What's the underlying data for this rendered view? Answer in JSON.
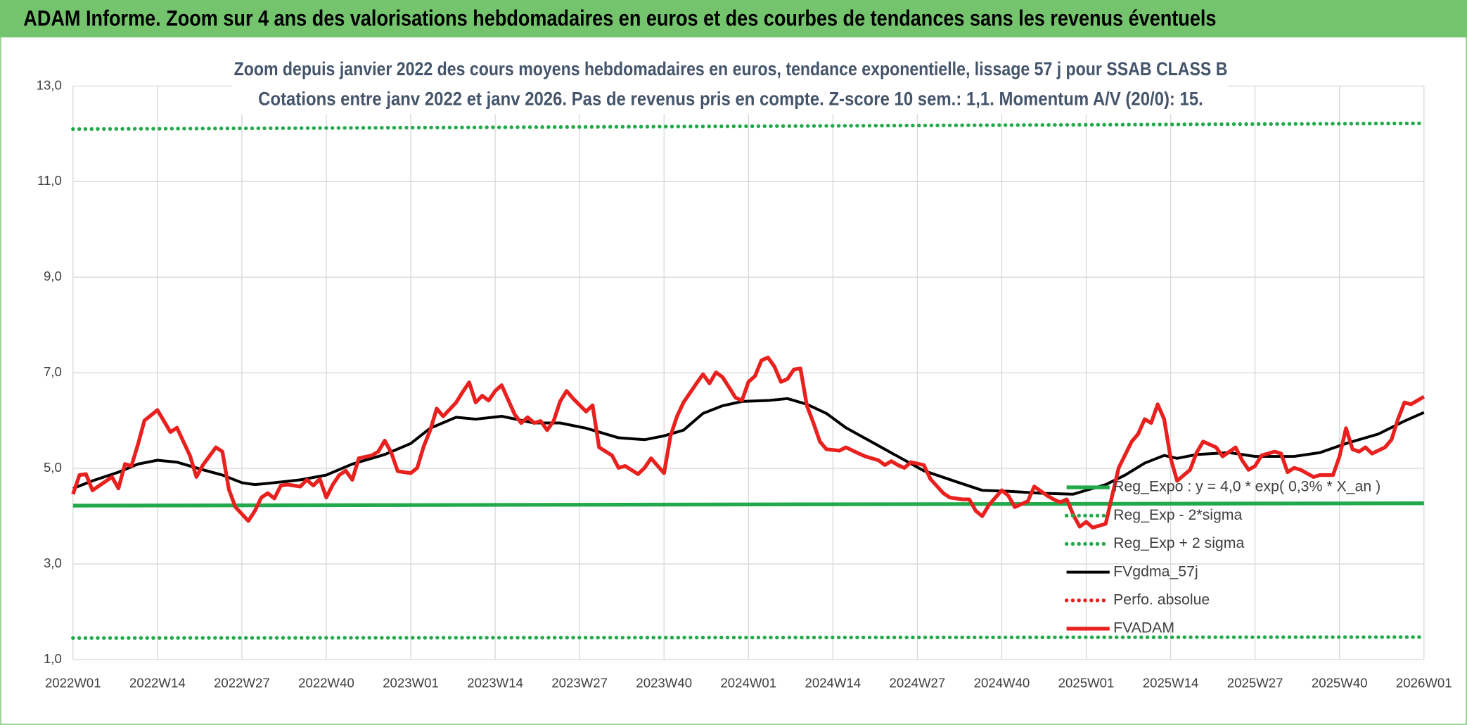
{
  "header": {
    "title": "ADAM Informe. Zoom sur 4 ans des valorisations hebdomadaires en euros et des courbes de tendances sans les revenus éventuels"
  },
  "chart_data": {
    "type": "line",
    "title": "Zoom depuis janvier 2022 des cours moyens hebdomadaires en euros, tendance exponentielle, lissage 57 j pour SSAB CLASS B",
    "subtitle": "Cotations entre janv 2022 et janv 2026. Pas de revenus pris en compte. Z-score 10 sem.: 1,1. Momentum A/V (20/0): 15.",
    "xlim": [
      0,
      208
    ],
    "xticks": [
      {
        "value": 0,
        "label": "2022W01"
      },
      {
        "value": 13,
        "label": "2022W14"
      },
      {
        "value": 26,
        "label": "2022W27"
      },
      {
        "value": 39,
        "label": "2022W40"
      },
      {
        "value": 52,
        "label": "2023W01"
      },
      {
        "value": 65,
        "label": "2023W14"
      },
      {
        "value": 78,
        "label": "2023W27"
      },
      {
        "value": 91,
        "label": "2023W40"
      },
      {
        "value": 104,
        "label": "2024W01"
      },
      {
        "value": 117,
        "label": "2024W14"
      },
      {
        "value": 130,
        "label": "2024W27"
      },
      {
        "value": 143,
        "label": "2024W40"
      },
      {
        "value": 156,
        "label": "2025W01"
      },
      {
        "value": 169,
        "label": "2025W14"
      },
      {
        "value": 182,
        "label": "2025W27"
      },
      {
        "value": 195,
        "label": "2025W40"
      },
      {
        "value": 208,
        "label": "2026W01"
      }
    ],
    "ylim": [
      1,
      13
    ],
    "yticks": [
      {
        "value": 1,
        "label": "1,0"
      },
      {
        "value": 3,
        "label": "3,0"
      },
      {
        "value": 5,
        "label": "5,0"
      },
      {
        "value": 7,
        "label": "7,0"
      },
      {
        "value": 9,
        "label": "9,0"
      },
      {
        "value": 11,
        "label": "11,0"
      },
      {
        "value": 13,
        "label": "13,0"
      }
    ],
    "grid": true,
    "legend": "lower-right",
    "series": [
      {
        "name": "Reg_Expo : y = 4,0 * exp( 0,3% *  X_an )",
        "color": "#22a94b",
        "style": "solid",
        "x": [
          0,
          208
        ],
        "values": [
          4.22,
          4.27
        ]
      },
      {
        "name": "Reg_Exp - 2*sigma",
        "color": "#22a94b",
        "style": "dotted",
        "x": [
          0,
          208
        ],
        "values": [
          1.45,
          1.47
        ]
      },
      {
        "name": "Reg_Exp + 2 sigma",
        "color": "#22a94b",
        "style": "dotted",
        "x": [
          0,
          208
        ],
        "values": [
          12.1,
          12.22
        ]
      },
      {
        "name": "FVgdma_57j",
        "color": "#000000",
        "style": "solid",
        "x": [
          0,
          3,
          7,
          10,
          13,
          16,
          20,
          23,
          26,
          28,
          31,
          35,
          39,
          43,
          48,
          52,
          55,
          59,
          62,
          66,
          71,
          75,
          79,
          84,
          88,
          91,
          94,
          97,
          100,
          103,
          107,
          110,
          113,
          116,
          119,
          123,
          127,
          131,
          136,
          140,
          144,
          149,
          154,
          159,
          162,
          165,
          168,
          170,
          173,
          178,
          182,
          188,
          192,
          196,
          201,
          205,
          208
        ],
        "values": [
          4.58,
          4.74,
          4.92,
          5.09,
          5.17,
          5.13,
          4.97,
          4.86,
          4.7,
          4.66,
          4.7,
          4.76,
          4.86,
          5.09,
          5.29,
          5.52,
          5.84,
          6.07,
          6.03,
          6.09,
          5.95,
          5.95,
          5.84,
          5.64,
          5.6,
          5.68,
          5.8,
          6.15,
          6.31,
          6.4,
          6.42,
          6.46,
          6.34,
          6.15,
          5.85,
          5.55,
          5.25,
          4.95,
          4.72,
          4.54,
          4.52,
          4.48,
          4.46,
          4.66,
          4.86,
          5.11,
          5.27,
          5.21,
          5.29,
          5.33,
          5.25,
          5.25,
          5.33,
          5.52,
          5.72,
          5.99,
          6.17
        ]
      },
      {
        "name": "Perfo. absolue",
        "color": "#e8211f",
        "style": "dotted"
      },
      {
        "name": "FVADAM",
        "color": "#e8211f",
        "style": "solid",
        "x": [
          0,
          1,
          2,
          3,
          6,
          7,
          8,
          9,
          10,
          11,
          13,
          15,
          16,
          18,
          19,
          20,
          22,
          23,
          24,
          25,
          27,
          28,
          29,
          30,
          31,
          32,
          33,
          35,
          36,
          37,
          38,
          39,
          40,
          41,
          42,
          43,
          44,
          46,
          47,
          48,
          49,
          50,
          52,
          53,
          54,
          55,
          56,
          57,
          59,
          60,
          61,
          62,
          63,
          64,
          65,
          66,
          68,
          69,
          70,
          71,
          72,
          73,
          74,
          75,
          76,
          77,
          79,
          80,
          81,
          83,
          84,
          85,
          87,
          88,
          89,
          91,
          92,
          93,
          94,
          96,
          97,
          98,
          99,
          100,
          101,
          102,
          103,
          104,
          105,
          106,
          107,
          108,
          109,
          110,
          111,
          112,
          113,
          114,
          115,
          116,
          118,
          119,
          121,
          122,
          124,
          125,
          126,
          127,
          128,
          129,
          131,
          132,
          134,
          135,
          137,
          138,
          139,
          140,
          141,
          143,
          144,
          145,
          147,
          148,
          150,
          151,
          152,
          153,
          154,
          155,
          156,
          157,
          159,
          160,
          161,
          163,
          164,
          165,
          166,
          167,
          168,
          169,
          170,
          172,
          173,
          174,
          176,
          177,
          179,
          180,
          181,
          182,
          183,
          185,
          186,
          187,
          188,
          189,
          191,
          192,
          194,
          195,
          196,
          197,
          198,
          199,
          200,
          202,
          203,
          204,
          205,
          206,
          207,
          208
        ],
        "values": [
          4.46,
          4.86,
          4.88,
          4.54,
          4.82,
          4.58,
          5.09,
          5.05,
          5.5,
          6.0,
          6.22,
          5.76,
          5.85,
          5.27,
          4.82,
          5.07,
          5.44,
          5.35,
          4.56,
          4.19,
          3.9,
          4.11,
          4.39,
          4.48,
          4.37,
          4.64,
          4.66,
          4.62,
          4.76,
          4.64,
          4.78,
          4.39,
          4.66,
          4.86,
          4.95,
          4.76,
          5.21,
          5.27,
          5.35,
          5.58,
          5.33,
          4.94,
          4.9,
          5.01,
          5.46,
          5.8,
          6.25,
          6.09,
          6.38,
          6.6,
          6.8,
          6.38,
          6.52,
          6.42,
          6.62,
          6.74,
          6.13,
          5.95,
          6.07,
          5.95,
          5.99,
          5.8,
          5.99,
          6.4,
          6.62,
          6.46,
          6.19,
          6.32,
          5.44,
          5.27,
          5.01,
          5.05,
          4.88,
          5.01,
          5.21,
          4.9,
          5.68,
          6.09,
          6.38,
          6.78,
          6.97,
          6.78,
          7.01,
          6.91,
          6.7,
          6.48,
          6.42,
          6.81,
          6.93,
          7.26,
          7.32,
          7.13,
          6.81,
          6.87,
          7.07,
          7.09,
          6.31,
          5.95,
          5.56,
          5.4,
          5.37,
          5.44,
          5.31,
          5.25,
          5.17,
          5.07,
          5.15,
          5.07,
          5.01,
          5.13,
          5.07,
          4.78,
          4.48,
          4.39,
          4.35,
          4.35,
          4.11,
          4.0,
          4.23,
          4.54,
          4.43,
          4.19,
          4.31,
          4.62,
          4.43,
          4.35,
          4.29,
          4.35,
          4.03,
          3.78,
          3.88,
          3.76,
          3.84,
          4.43,
          5.01,
          5.56,
          5.72,
          6.03,
          5.95,
          6.34,
          6.03,
          5.21,
          4.74,
          4.97,
          5.33,
          5.56,
          5.44,
          5.25,
          5.44,
          5.17,
          4.97,
          5.05,
          5.27,
          5.35,
          5.31,
          4.92,
          5.01,
          4.97,
          4.82,
          4.86,
          4.86,
          5.25,
          5.84,
          5.4,
          5.35,
          5.44,
          5.31,
          5.44,
          5.6,
          6.03,
          6.38,
          6.34,
          6.42,
          6.5
        ]
      }
    ]
  }
}
